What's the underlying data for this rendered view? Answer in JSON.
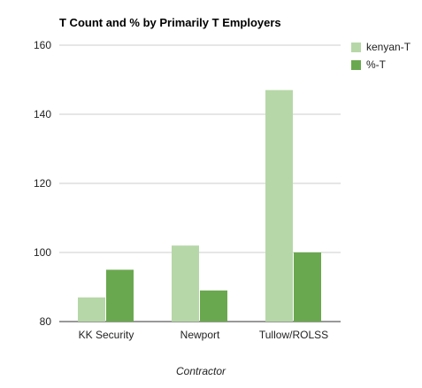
{
  "chart_data": {
    "type": "bar",
    "title": "T Count and % by Primarily T Employers",
    "xlabel": "Contractor",
    "ylabel": "",
    "categories": [
      "KK Security",
      "Newport",
      "Tullow/ROLSS"
    ],
    "series": [
      {
        "name": "kenyan-T",
        "values": [
          87,
          102,
          147
        ],
        "color": "#b6d7a8"
      },
      {
        "name": "%-T",
        "values": [
          95,
          89,
          100
        ],
        "color": "#6aa84f"
      }
    ],
    "ylim": [
      80,
      160
    ],
    "yticks": [
      80,
      100,
      120,
      140,
      160
    ],
    "grid": true,
    "legend": "right"
  },
  "colors": {
    "grid": "#cccccc",
    "axis": "#333333",
    "text": "#222222"
  }
}
